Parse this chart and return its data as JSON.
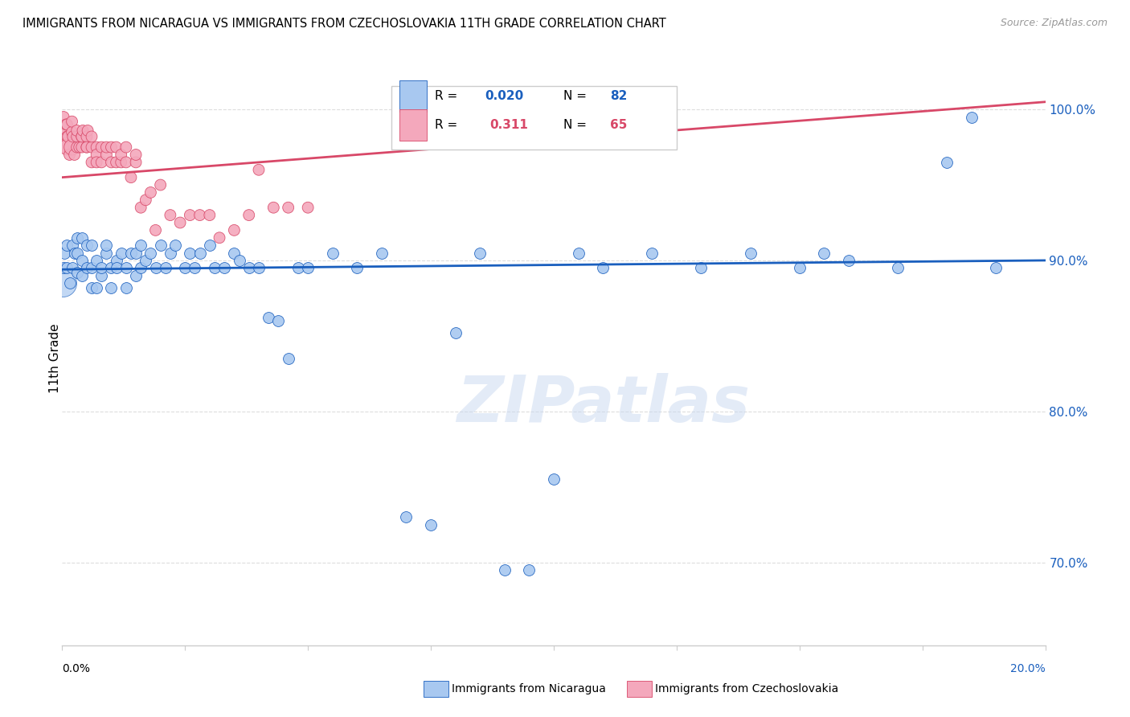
{
  "title": "IMMIGRANTS FROM NICARAGUA VS IMMIGRANTS FROM CZECHOSLOVAKIA 11TH GRADE CORRELATION CHART",
  "source": "Source: ZipAtlas.com",
  "ylabel": "11th Grade",
  "right_ytick_vals": [
    0.7,
    0.8,
    0.9,
    1.0
  ],
  "right_ytick_labels": [
    "70.0%",
    "80.0%",
    "90.0%",
    "100.0%"
  ],
  "legend_blue_label": "Immigrants from Nicaragua",
  "legend_pink_label": "Immigrants from Czechoslovakia",
  "blue_color": "#A8C8F0",
  "pink_color": "#F4A8BC",
  "trend_blue_color": "#1A5FBE",
  "trend_pink_color": "#D84868",
  "watermark_text": "ZIPatlas",
  "blue_scatter_x": [
    0.0002,
    0.0005,
    0.001,
    0.001,
    0.0015,
    0.002,
    0.002,
    0.0025,
    0.003,
    0.003,
    0.003,
    0.004,
    0.004,
    0.004,
    0.005,
    0.005,
    0.006,
    0.006,
    0.006,
    0.007,
    0.007,
    0.008,
    0.008,
    0.009,
    0.009,
    0.01,
    0.01,
    0.011,
    0.011,
    0.012,
    0.013,
    0.013,
    0.014,
    0.015,
    0.015,
    0.016,
    0.016,
    0.017,
    0.018,
    0.019,
    0.02,
    0.021,
    0.022,
    0.023,
    0.025,
    0.026,
    0.027,
    0.028,
    0.03,
    0.031,
    0.033,
    0.035,
    0.036,
    0.038,
    0.04,
    0.042,
    0.044,
    0.046,
    0.048,
    0.05,
    0.055,
    0.06,
    0.065,
    0.07,
    0.075,
    0.08,
    0.085,
    0.09,
    0.095,
    0.1,
    0.105,
    0.11,
    0.12,
    0.13,
    0.14,
    0.15,
    0.155,
    0.16,
    0.17,
    0.18,
    0.185,
    0.19
  ],
  "blue_scatter_y": [
    0.895,
    0.905,
    0.895,
    0.91,
    0.885,
    0.895,
    0.91,
    0.905,
    0.892,
    0.905,
    0.915,
    0.89,
    0.9,
    0.915,
    0.895,
    0.91,
    0.882,
    0.895,
    0.91,
    0.882,
    0.9,
    0.89,
    0.895,
    0.905,
    0.91,
    0.895,
    0.882,
    0.9,
    0.895,
    0.905,
    0.882,
    0.895,
    0.905,
    0.89,
    0.905,
    0.895,
    0.91,
    0.9,
    0.905,
    0.895,
    0.91,
    0.895,
    0.905,
    0.91,
    0.895,
    0.905,
    0.895,
    0.905,
    0.91,
    0.895,
    0.895,
    0.905,
    0.9,
    0.895,
    0.895,
    0.862,
    0.86,
    0.835,
    0.895,
    0.895,
    0.905,
    0.895,
    0.905,
    0.73,
    0.725,
    0.852,
    0.905,
    0.695,
    0.695,
    0.755,
    0.905,
    0.895,
    0.905,
    0.895,
    0.905,
    0.895,
    0.905,
    0.9,
    0.895,
    0.965,
    0.995,
    0.895
  ],
  "pink_scatter_x": [
    0.0001,
    0.0002,
    0.0003,
    0.0005,
    0.0008,
    0.001,
    0.001,
    0.001,
    0.0012,
    0.0015,
    0.002,
    0.002,
    0.002,
    0.0022,
    0.0025,
    0.003,
    0.003,
    0.003,
    0.0035,
    0.004,
    0.004,
    0.004,
    0.0042,
    0.005,
    0.005,
    0.005,
    0.0052,
    0.006,
    0.006,
    0.006,
    0.007,
    0.007,
    0.007,
    0.008,
    0.008,
    0.009,
    0.009,
    0.01,
    0.01,
    0.011,
    0.011,
    0.012,
    0.012,
    0.013,
    0.013,
    0.014,
    0.015,
    0.015,
    0.016,
    0.017,
    0.018,
    0.019,
    0.02,
    0.022,
    0.024,
    0.026,
    0.028,
    0.03,
    0.032,
    0.035,
    0.038,
    0.04,
    0.043,
    0.046,
    0.05
  ],
  "pink_scatter_y": [
    0.98,
    0.975,
    0.995,
    0.985,
    0.99,
    0.982,
    0.975,
    0.99,
    0.982,
    0.97,
    0.985,
    0.975,
    0.992,
    0.982,
    0.97,
    0.975,
    0.982,
    0.986,
    0.975,
    0.982,
    0.975,
    0.982,
    0.986,
    0.975,
    0.982,
    0.975,
    0.986,
    0.965,
    0.975,
    0.982,
    0.975,
    0.97,
    0.965,
    0.975,
    0.965,
    0.97,
    0.975,
    0.965,
    0.975,
    0.965,
    0.975,
    0.965,
    0.97,
    0.965,
    0.975,
    0.955,
    0.965,
    0.97,
    0.935,
    0.94,
    0.945,
    0.92,
    0.95,
    0.93,
    0.925,
    0.93,
    0.93,
    0.93,
    0.915,
    0.92,
    0.93,
    0.96,
    0.935,
    0.935,
    0.935
  ],
  "pink_size_multiplier": [
    1,
    1,
    1,
    1,
    1,
    1,
    2,
    1,
    1,
    1,
    1,
    2,
    1,
    1,
    1,
    1,
    1,
    1,
    1,
    1,
    1,
    1,
    1,
    1,
    1,
    1,
    1,
    1,
    1,
    1,
    1,
    1,
    1,
    1,
    1,
    1,
    1,
    1,
    1,
    1,
    1,
    1,
    1,
    1,
    1,
    1,
    1,
    1,
    1,
    1,
    1,
    1,
    1,
    1,
    1,
    1,
    1,
    1,
    1,
    1,
    1,
    1,
    1,
    1,
    1
  ],
  "blue_trend_x": [
    0.0,
    0.2
  ],
  "blue_trend_y": [
    0.894,
    0.9
  ],
  "pink_trend_x": [
    0.0,
    0.2
  ],
  "pink_trend_y": [
    0.955,
    1.005
  ],
  "xlim": [
    0.0,
    0.2
  ],
  "ylim": [
    0.645,
    1.025
  ],
  "xtick_positions": [
    0.0,
    0.025,
    0.05,
    0.075,
    0.1,
    0.125,
    0.15,
    0.175,
    0.2
  ],
  "grid_color": "#dddddd",
  "spine_color": "#cccccc"
}
